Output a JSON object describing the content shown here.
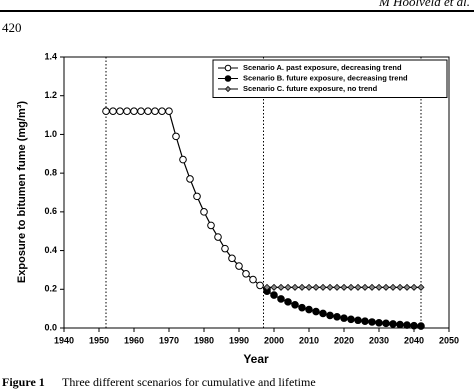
{
  "header": {
    "running_head": "M Hoolveld et al.",
    "page_number": "420"
  },
  "caption": {
    "label": "Figure 1",
    "text": "Three different scenarios for cumulative and lifetime"
  },
  "chart_data": {
    "type": "line",
    "x_label": "Year",
    "y_label": "Exposure to bitumen fume (mg/m³)",
    "xlim": [
      1940,
      2050
    ],
    "xticks": [
      1940,
      1950,
      1960,
      1970,
      1980,
      1990,
      2000,
      2010,
      2020,
      2030,
      2040,
      2050
    ],
    "ylim": [
      0,
      1.4
    ],
    "yticks": [
      {
        "value": 0,
        "label": "0.0"
      },
      {
        "value": 0.2,
        "label": "0.2"
      },
      {
        "value": 0.4,
        "label": "0.4"
      },
      {
        "value": 0.6,
        "label": "0.6"
      },
      {
        "value": 0.8,
        "label": "0.8"
      },
      {
        "value": 1,
        "label": "1.0"
      },
      {
        "value": 1.2,
        "label": "1.2"
      },
      {
        "value": 1.4,
        "label": "1.4"
      }
    ],
    "reference_lines": [
      1952,
      1997,
      2042
    ],
    "legend_position": "top-right",
    "series": [
      {
        "name": "Scenario A. past exposure, decreasing trend",
        "color": "#000000",
        "marker": "open-circle",
        "x": [
          1952,
          1954,
          1956,
          1958,
          1960,
          1962,
          1964,
          1966,
          1968,
          1970,
          1972,
          1974,
          1976,
          1978,
          1980,
          1982,
          1984,
          1986,
          1988,
          1990,
          1992,
          1994,
          1996,
          1998
        ],
        "values": [
          1.12,
          1.12,
          1.12,
          1.12,
          1.12,
          1.12,
          1.12,
          1.12,
          1.12,
          1.12,
          0.99,
          0.87,
          0.77,
          0.68,
          0.6,
          0.53,
          0.47,
          0.41,
          0.36,
          0.32,
          0.28,
          0.25,
          0.22,
          0.2
        ]
      },
      {
        "name": "Scenario B. future exposure, decreasing trend",
        "color": "#000000",
        "marker": "filled-circle",
        "x": [
          1998,
          2000,
          2002,
          2004,
          2006,
          2008,
          2010,
          2012,
          2014,
          2016,
          2018,
          2020,
          2022,
          2024,
          2026,
          2028,
          2030,
          2032,
          2034,
          2036,
          2038,
          2040,
          2042
        ],
        "values": [
          0.19,
          0.17,
          0.15,
          0.135,
          0.12,
          0.105,
          0.095,
          0.085,
          0.075,
          0.065,
          0.058,
          0.051,
          0.045,
          0.04,
          0.035,
          0.031,
          0.027,
          0.024,
          0.021,
          0.018,
          0.015,
          0.012,
          0.01
        ]
      },
      {
        "name": "Scenario C. future exposure, no trend",
        "color": "#000000",
        "marker": "diamond",
        "x": [
          1998,
          2000,
          2002,
          2004,
          2006,
          2008,
          2010,
          2012,
          2014,
          2016,
          2018,
          2020,
          2022,
          2024,
          2026,
          2028,
          2030,
          2032,
          2034,
          2036,
          2038,
          2040,
          2042
        ],
        "values": [
          0.21,
          0.21,
          0.21,
          0.21,
          0.21,
          0.21,
          0.21,
          0.21,
          0.21,
          0.21,
          0.21,
          0.21,
          0.21,
          0.21,
          0.21,
          0.21,
          0.21,
          0.21,
          0.21,
          0.21,
          0.21,
          0.21,
          0.21
        ]
      }
    ]
  }
}
